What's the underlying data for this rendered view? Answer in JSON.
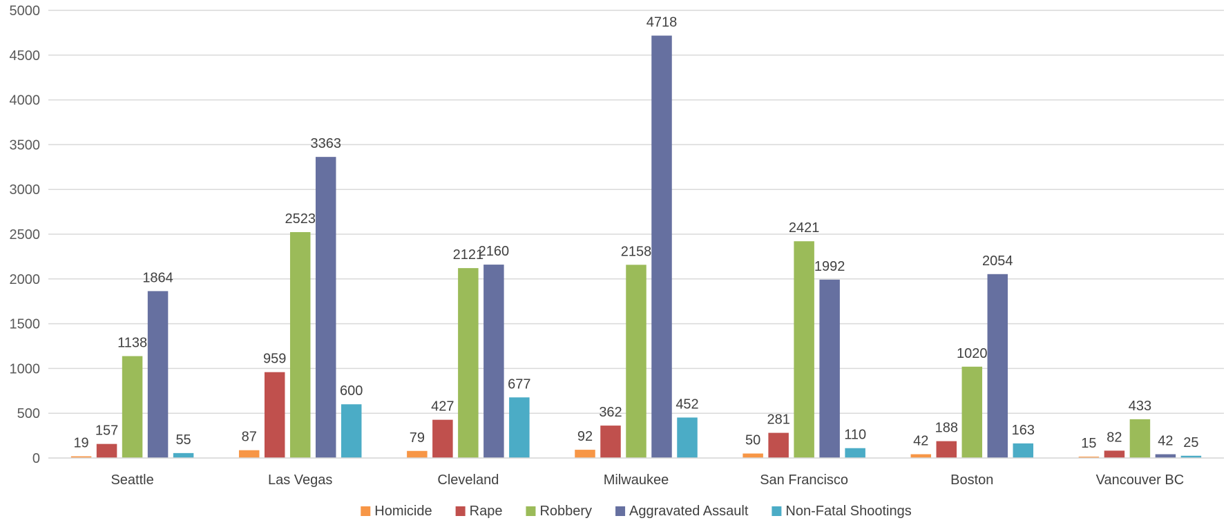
{
  "chart_data": {
    "type": "bar",
    "title": "",
    "xlabel": "",
    "ylabel": "",
    "ylim": [
      0,
      5000
    ],
    "yticks": [
      0,
      500,
      1000,
      1500,
      2000,
      2500,
      3000,
      3500,
      4000,
      4500,
      5000
    ],
    "grid": "horizontal",
    "legend_position": "bottom",
    "categories": [
      "Seattle",
      "Las Vegas",
      "Cleveland",
      "Milwaukee",
      "San Francisco",
      "Boston",
      "Vancouver BC"
    ],
    "series": [
      {
        "name": "Homicide",
        "color": "#F79646",
        "values": [
          19,
          87,
          79,
          92,
          50,
          42,
          15
        ]
      },
      {
        "name": "Rape",
        "color": "#C0504D",
        "values": [
          157,
          959,
          427,
          362,
          281,
          188,
          82
        ]
      },
      {
        "name": "Robbery",
        "color": "#9BBB59",
        "values": [
          1138,
          2523,
          2121,
          2158,
          2421,
          1020,
          433
        ]
      },
      {
        "name": "Aggravated Assault",
        "color": "#6670A0",
        "values": [
          1864,
          3363,
          2160,
          4718,
          1992,
          2054,
          42
        ]
      },
      {
        "name": "Non-Fatal Shootings",
        "color": "#4BACC6",
        "values": [
          55,
          600,
          677,
          452,
          110,
          163,
          25
        ]
      }
    ]
  }
}
